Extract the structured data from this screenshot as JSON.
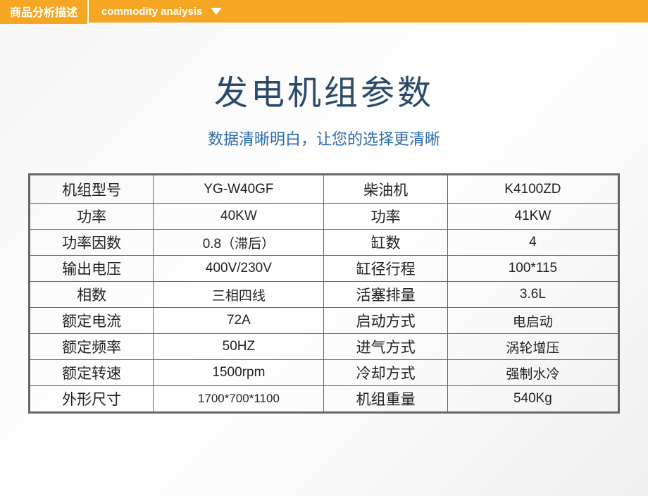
{
  "header": {
    "tag": "商品分析描述",
    "sub": "commodity anaiysis"
  },
  "title": {
    "main": "发电机组参数",
    "sub": "数据清晰明白，让您的选择更清晰"
  },
  "table": {
    "type": "table",
    "border_color": "#666666",
    "background_color": "#ffffff",
    "text_color": "#222222",
    "label_fontsize": 21,
    "value_fontsize": 19,
    "columns": [
      "label1",
      "value1",
      "label2",
      "value2"
    ],
    "rows": [
      {
        "l1": "机组型号",
        "v1": "YG-W40GF",
        "l2": "柴油机",
        "v2": "K4100ZD"
      },
      {
        "l1": "功率",
        "v1": "40KW",
        "l2": "功率",
        "v2": "41KW"
      },
      {
        "l1": "功率因数",
        "v1": "0.8（滞后）",
        "l2": "缸数",
        "v2": "4"
      },
      {
        "l1": "输出电压",
        "v1": "400V/230V",
        "l2": "缸径行程",
        "v2": "100*115"
      },
      {
        "l1": "相数",
        "v1": "三相四线",
        "l2": "活塞排量",
        "v2": "3.6L"
      },
      {
        "l1": "额定电流",
        "v1": "72A",
        "l2": "启动方式",
        "v2": "电启动"
      },
      {
        "l1": "额定频率",
        "v1": "50HZ",
        "l2": "进气方式",
        "v2": "涡轮增压"
      },
      {
        "l1": "额定转速",
        "v1": "1500rpm",
        "l2": "冷却方式",
        "v2": "强制水冷"
      },
      {
        "l1": "外形尺寸",
        "v1": "1700*700*1100",
        "l2": "机组重量",
        "v2": "540Kg"
      }
    ]
  },
  "colors": {
    "accent": "#f5a623",
    "title": "#2a4a6a",
    "subtitle": "#2a6aa8",
    "white": "#ffffff"
  }
}
